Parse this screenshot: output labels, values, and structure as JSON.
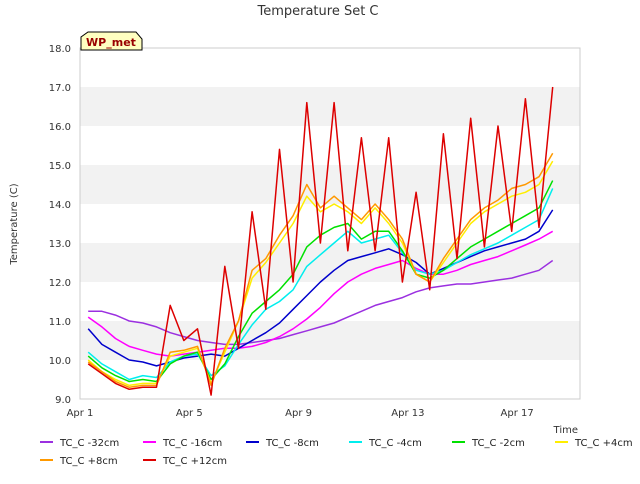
{
  "chart_data": {
    "type": "line",
    "title": "Temperature Set C",
    "xlabel": "Time",
    "ylabel": "Temperature (C)",
    "annotation": "WP_met",
    "x_start": "Apr 1",
    "x_ticks": [
      "Apr 1",
      "Apr 5",
      "Apr 9",
      "Apr 13",
      "Apr 17"
    ],
    "x_tick_days": [
      0,
      4,
      8,
      12,
      16
    ],
    "xlim_days": [
      0,
      18.3
    ],
    "ylim": [
      9.0,
      18.0
    ],
    "y_ticks": [
      "9.0",
      "10.0",
      "11.0",
      "12.0",
      "13.0",
      "14.0",
      "15.0",
      "16.0",
      "17.0",
      "18.0"
    ],
    "grid": "horizontal alternating bands",
    "legend_position": "bottom",
    "x": [
      0.3,
      0.8,
      1.3,
      1.8,
      2.3,
      2.8,
      3.3,
      3.8,
      4.3,
      4.8,
      5.3,
      5.8,
      6.3,
      6.8,
      7.3,
      7.8,
      8.3,
      8.8,
      9.3,
      9.8,
      10.3,
      10.8,
      11.3,
      11.8,
      12.3,
      12.8,
      13.3,
      13.8,
      14.3,
      14.8,
      15.3,
      15.8,
      16.3,
      16.8,
      17.3
    ],
    "series": [
      {
        "name": "TC_C -32cm",
        "color": "#9b30e0",
        "values": [
          11.25,
          11.25,
          11.15,
          11.0,
          10.95,
          10.85,
          10.7,
          10.6,
          10.5,
          10.45,
          10.4,
          10.4,
          10.45,
          10.5,
          10.55,
          10.65,
          10.75,
          10.85,
          10.95,
          11.1,
          11.25,
          11.4,
          11.5,
          11.6,
          11.75,
          11.85,
          11.9,
          11.95,
          11.95,
          12.0,
          12.05,
          12.1,
          12.2,
          12.3,
          12.55
        ]
      },
      {
        "name": "TC_C -16cm",
        "color": "#ff00ff",
        "values": [
          11.1,
          10.85,
          10.55,
          10.35,
          10.25,
          10.15,
          10.1,
          10.15,
          10.2,
          10.25,
          10.3,
          10.3,
          10.35,
          10.45,
          10.6,
          10.8,
          11.05,
          11.35,
          11.7,
          12.0,
          12.2,
          12.35,
          12.45,
          12.55,
          12.35,
          12.2,
          12.2,
          12.3,
          12.45,
          12.55,
          12.65,
          12.8,
          12.95,
          13.1,
          13.3
        ]
      },
      {
        "name": "TC_C -8cm",
        "color": "#0000cc",
        "values": [
          10.8,
          10.4,
          10.2,
          10.0,
          9.95,
          9.85,
          9.95,
          10.05,
          10.1,
          10.15,
          10.1,
          10.3,
          10.5,
          10.7,
          10.95,
          11.3,
          11.65,
          12.0,
          12.3,
          12.55,
          12.65,
          12.75,
          12.85,
          12.7,
          12.5,
          12.2,
          12.35,
          12.5,
          12.65,
          12.8,
          12.9,
          13.0,
          13.1,
          13.3,
          13.85
        ]
      },
      {
        "name": "TC_C -4cm",
        "color": "#00eeee",
        "values": [
          10.2,
          9.9,
          9.7,
          9.5,
          9.6,
          9.55,
          9.95,
          10.1,
          10.15,
          9.6,
          9.85,
          10.4,
          10.9,
          11.3,
          11.5,
          11.8,
          12.4,
          12.7,
          13.0,
          13.3,
          13.0,
          13.1,
          13.2,
          12.75,
          12.3,
          12.2,
          12.3,
          12.5,
          12.7,
          12.85,
          13.0,
          13.2,
          13.4,
          13.6,
          14.4
        ]
      },
      {
        "name": "TC_C -2cm",
        "color": "#00e000",
        "values": [
          10.1,
          9.8,
          9.6,
          9.45,
          9.5,
          9.45,
          9.9,
          10.1,
          10.2,
          9.5,
          9.9,
          10.6,
          11.2,
          11.5,
          11.8,
          12.2,
          12.9,
          13.2,
          13.4,
          13.5,
          13.1,
          13.3,
          13.3,
          12.8,
          12.2,
          12.1,
          12.3,
          12.6,
          12.9,
          13.1,
          13.3,
          13.5,
          13.7,
          13.9,
          14.6
        ]
      },
      {
        "name": "TC_C +4cm",
        "color": "#ffee00",
        "values": [
          10.0,
          9.7,
          9.5,
          9.35,
          9.4,
          9.4,
          10.1,
          10.2,
          10.3,
          9.4,
          10.2,
          11.0,
          12.1,
          12.5,
          13.0,
          13.5,
          14.2,
          13.8,
          14.0,
          13.8,
          13.5,
          13.9,
          13.5,
          13.0,
          12.2,
          12.0,
          12.5,
          13.0,
          13.5,
          13.8,
          14.0,
          14.2,
          14.3,
          14.5,
          15.1
        ]
      },
      {
        "name": "TC_C +8cm",
        "color": "#ff9900",
        "values": [
          9.95,
          9.7,
          9.45,
          9.3,
          9.35,
          9.35,
          10.2,
          10.25,
          10.35,
          9.35,
          10.3,
          11.0,
          12.3,
          12.6,
          13.2,
          13.7,
          14.5,
          13.9,
          14.2,
          13.9,
          13.6,
          14.0,
          13.6,
          13.1,
          12.2,
          12.0,
          12.6,
          13.1,
          13.6,
          13.9,
          14.1,
          14.4,
          14.5,
          14.7,
          15.3
        ]
      },
      {
        "name": "TC_C +12cm",
        "color": "#dd0000",
        "values": [
          9.9,
          9.65,
          9.4,
          9.25,
          9.3,
          9.3,
          11.4,
          10.5,
          10.8,
          9.1,
          12.4,
          10.3,
          13.8,
          11.3,
          15.4,
          12.0,
          16.6,
          13.0,
          16.6,
          12.8,
          15.7,
          12.8,
          15.7,
          12.0,
          14.3,
          11.8,
          15.8,
          12.6,
          16.2,
          12.9,
          16.0,
          13.3,
          16.7,
          13.4,
          17.0
        ]
      }
    ]
  }
}
